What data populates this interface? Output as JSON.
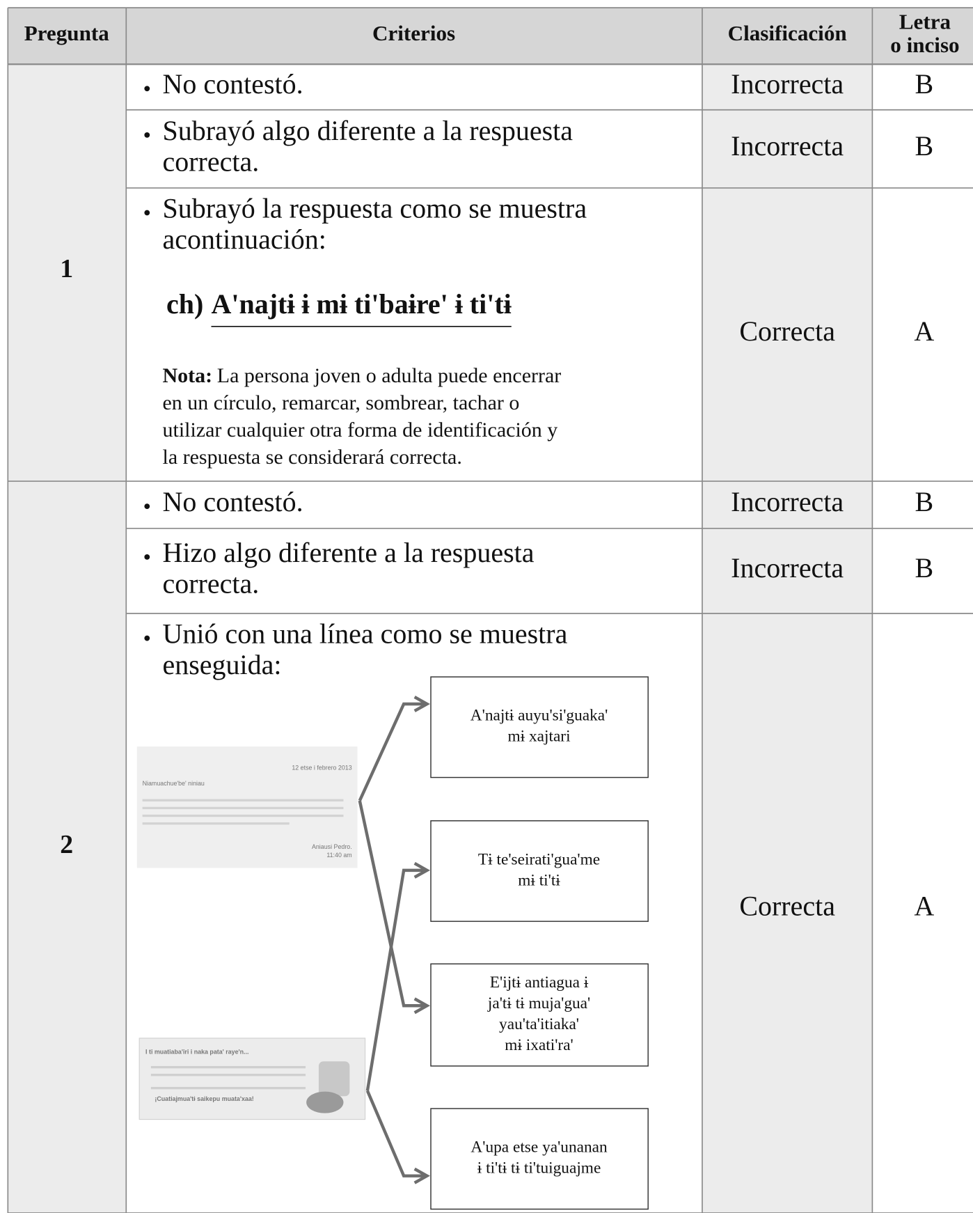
{
  "header": {
    "pregunta": "Pregunta",
    "criterios": "Criterios",
    "clasificacion": "Clasificación",
    "letra": [
      "Letra",
      "o inciso"
    ]
  },
  "questions": [
    {
      "number": "1",
      "items": [
        {
          "criterion": [
            "No contestó."
          ],
          "classification": "Incorrecta",
          "letter": "B"
        },
        {
          "criterion": [
            "Subrayó algo diferente a la respuesta",
            "correcta."
          ],
          "classification": "Incorrecta",
          "letter": "B"
        },
        {
          "criterion": [
            "Subrayó la respuesta como se muestra",
            "acontinuación:"
          ],
          "classification": "Correcta",
          "letter": "A",
          "example": {
            "label": "ch)",
            "answer": "A'najtɨ ɨ mɨ ti'baɨre' ɨ ti'tɨ"
          },
          "note_label": "Nota:",
          "note_lines": [
            "La persona joven o adulta puede encerrar",
            "en un círculo, remarcar, sombrear, tachar o",
            "utilizar cualquier otra forma de identificación y",
            "la respuesta se considerará correcta."
          ]
        }
      ]
    },
    {
      "number": "2",
      "items": [
        {
          "criterion": [
            "No contestó."
          ],
          "classification": "Incorrecta",
          "letter": "B"
        },
        {
          "criterion": [
            "Hizo algo diferente a la respuesta",
            "correcta."
          ],
          "classification": "Incorrecta",
          "letter": "B"
        },
        {
          "criterion": [
            "Unió con una línea como se muestra",
            "enseguida:"
          ],
          "classification": "Correcta",
          "letter": "A",
          "letter_image": [
            "12 etse i febrero 2013",
            "Niamuachue'be' niniau",
            "Aniausi Pedro.",
            "11:40 am"
          ],
          "poster_image": [
            "I ti muatiaba'iri i naka pata' raye'n...",
            "¡Cuatiajmua'tɨ saikepu muata'xaa!"
          ],
          "boxes": [
            [
              "A'najtɨ auyu'si'guaka'",
              "mɨ xajtari"
            ],
            [
              "Tɨ te'seirati'gua'me",
              "mɨ ti'tɨ"
            ],
            [
              "E'ijtɨ antiagua ɨ",
              "ja'tɨ tɨ muja'gua'",
              "yau'ta'itiaka'",
              "mɨ ixati'ra'"
            ],
            [
              "A'upa etse ya'unanan",
              "ɨ ti'tɨ tɨ ti'tuiguajme"
            ]
          ]
        }
      ]
    }
  ]
}
